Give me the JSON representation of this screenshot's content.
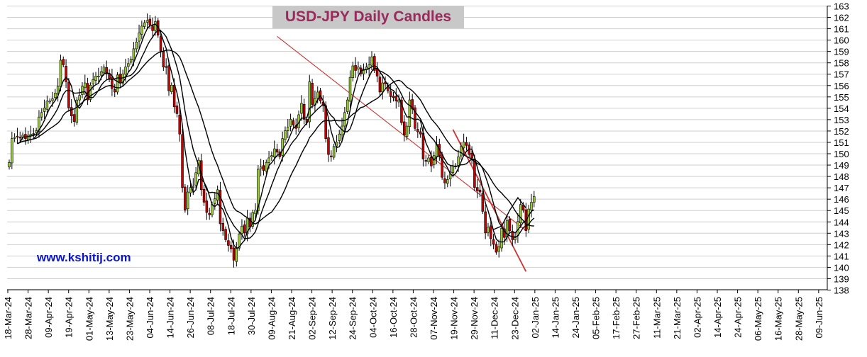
{
  "chart_data": {
    "type": "candlestick",
    "title": "USD-JPY Daily Candles",
    "watermark": "www.kshitij.com",
    "y_axis": {
      "min": 138,
      "max": 163,
      "position": "right",
      "ticks": [
        138,
        139,
        140,
        141,
        142,
        143,
        144,
        145,
        146,
        147,
        148,
        149,
        150,
        151,
        152,
        153,
        154,
        155,
        156,
        157,
        158,
        159,
        160,
        161,
        162,
        163
      ]
    },
    "x_labels": [
      "18-Mar-24",
      "28-Mar-24",
      "09-Apr-24",
      "19-Apr-24",
      "01-May-24",
      "13-May-24",
      "23-May-24",
      "04-Jun-24",
      "14-Jun-24",
      "26-Jun-24",
      "08-Jul-24",
      "18-Jul-24",
      "30-Jul-24",
      "09-Aug-24",
      "21-Aug-24",
      "02-Sep-24",
      "12-Sep-24",
      "24-Sep-24",
      "04-Oct-24",
      "16-Oct-24",
      "28-Oct-24",
      "07-Nov-24",
      "19-Nov-24",
      "29-Nov-24",
      "11-Dec-24",
      "23-Dec-24",
      "02-Jan-25",
      "14-Jan-25",
      "24-Jan-25",
      "05-Feb-25",
      "17-Feb-25",
      "27-Feb-25",
      "11-Mar-25",
      "21-Mar-25",
      "02-Apr-25",
      "14-Apr-25",
      "24-Apr-25",
      "06-May-25",
      "16-May-25",
      "28-May-25",
      "09-Jun-25"
    ],
    "closes": [
      149.2,
      151.3,
      151.4,
      151.5,
      151.4,
      151.6,
      151.3,
      151.6,
      151.7,
      151.7,
      152.0,
      153.2,
      153.6,
      154.0,
      154.6,
      154.6,
      154.8,
      155.3,
      155.9,
      158.2,
      157.8,
      156.3,
      154.0,
      153.3,
      152.8,
      154.7,
      155.1,
      155.9,
      156.2,
      154.7,
      156.0,
      156.5,
      156.8,
      156.8,
      157.2,
      157.6,
      157.0,
      156.6,
      155.7,
      155.4,
      156.9,
      156.3,
      157.0,
      157.6,
      157.9,
      158.3,
      159.2,
      159.8,
      160.6,
      161.2,
      161.5,
      161.7,
      161.3,
      160.8,
      161.6,
      160.4,
      159.0,
      157.6,
      157.6,
      155.5,
      156.0,
      154.1,
      153.5,
      151.7,
      147.0,
      145.0,
      146.6,
      147.0,
      147.1,
      148.3,
      149.4,
      146.8,
      145.7,
      144.8,
      144.6,
      145.5,
      146.0,
      146.8,
      143.8,
      143.2,
      142.4,
      141.9,
      141.6,
      140.6,
      141.7,
      142.9,
      143.6,
      143.0,
      144.3,
      143.5,
      144.8,
      145.0,
      148.6,
      148.8,
      148.5,
      149.2,
      149.6,
      149.8,
      150.4,
      150.1,
      149.7,
      151.3,
      152.0,
      152.3,
      153.0,
      152.5,
      152.2,
      153.4,
      154.4,
      153.0,
      152.7,
      156.3,
      154.3,
      154.8,
      155.4,
      154.6,
      154.2,
      151.3,
      149.9,
      149.7,
      150.6,
      151.0,
      151.7,
      152.4,
      153.6,
      154.7,
      156.7,
      157.7,
      157.3,
      157.6,
      157.0,
      157.3,
      157.6,
      157.8,
      158.5,
      157.3,
      156.8,
      155.4,
      156.2,
      156.1,
      155.5,
      155.0,
      154.9,
      154.6,
      154.7,
      152.7,
      151.6,
      152.4,
      154.7,
      153.9,
      152.2,
      151.9,
      151.7,
      149.5,
      149.3,
      149.6,
      148.9,
      149.8,
      150.8,
      149.8,
      147.9,
      147.4,
      147.7,
      148.2,
      148.9,
      148.9,
      149.7,
      150.6,
      151.0,
      150.7,
      149.9,
      149.6,
      147.0,
      146.7,
      146.6,
      144.9,
      143.0,
      143.5,
      142.5,
      142.0,
      141.3,
      141.8,
      143.4,
      142.6,
      144.1,
      143.2,
      142.4,
      142.7,
      144.0,
      145.5,
      145.0,
      143.2,
      145.1,
      145.7,
      146.2
    ],
    "trendlines": [
      {
        "name": "long-downtrend",
        "from_index": 99,
        "from_value": 160.3,
        "to_index": 191,
        "to_value": 143.2
      },
      {
        "name": "short-downtrend",
        "from_index": 164,
        "from_value": 152.1,
        "to_index": 191,
        "to_value": 139.6
      }
    ],
    "projection": {
      "from_index": 179,
      "points": [
        [
          179,
          143.3
        ],
        [
          182,
          143.6
        ],
        [
          185,
          145.0
        ],
        [
          188,
          146.1
        ],
        [
          191,
          145.2
        ]
      ]
    },
    "colors": {
      "up_body": "#9acd32",
      "down_body": "#c80000",
      "wick": "#000000",
      "trendline": "#cc3333",
      "ma": "#000000",
      "title_text": "#9b2a5c",
      "title_bg": "#c8c8c8",
      "watermark": "#0a14c8"
    }
  }
}
